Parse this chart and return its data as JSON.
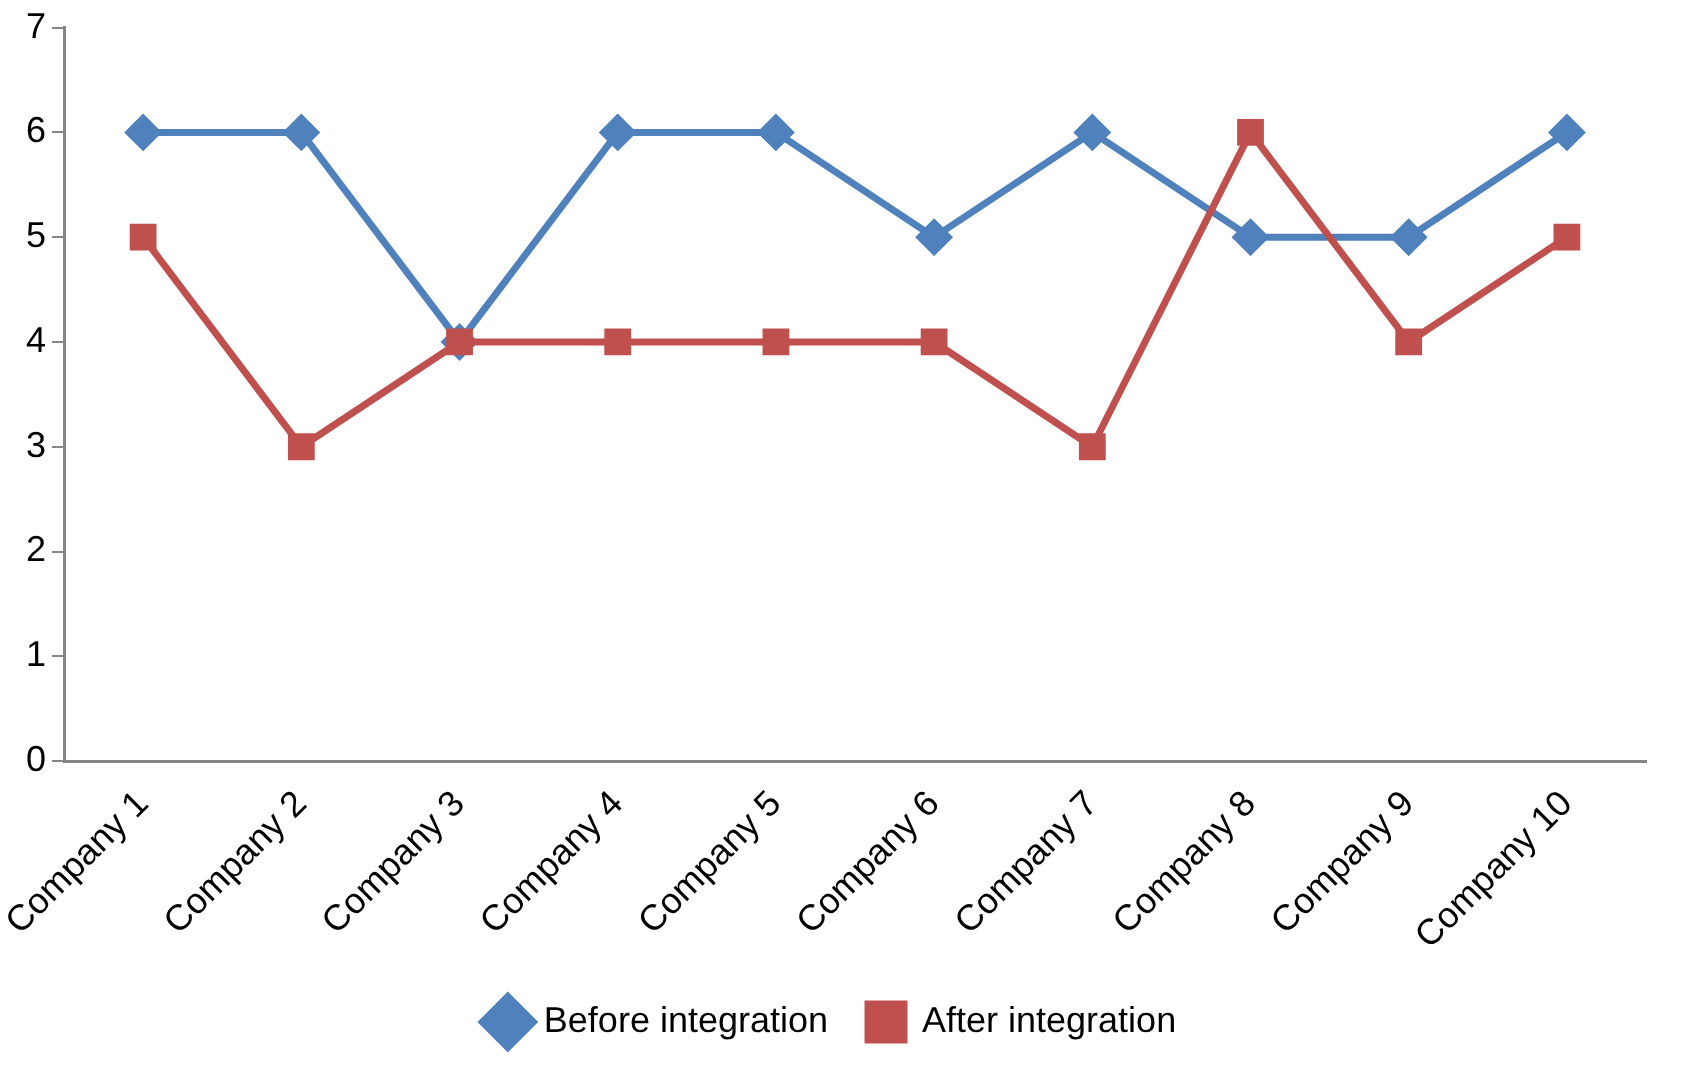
{
  "chart_data": {
    "type": "line",
    "categories": [
      "Company 1",
      "Company 2",
      "Company 3",
      "Company 4",
      "Company 5",
      "Company 6",
      "Company 7",
      "Company 8",
      "Company 9",
      "Company 10"
    ],
    "series": [
      {
        "name": "Before integration",
        "color": "#4f81bd",
        "marker": "diamond",
        "values": [
          6,
          6,
          4,
          6,
          6,
          5,
          6,
          5,
          5,
          6
        ]
      },
      {
        "name": "After integration",
        "color": "#c0504d",
        "marker": "square",
        "values": [
          5,
          3,
          4,
          4,
          4,
          4,
          3,
          6,
          4,
          5
        ]
      }
    ],
    "ylim": [
      0,
      7
    ],
    "yticks": [
      0,
      1,
      2,
      3,
      4,
      5,
      6,
      7
    ],
    "grid": false,
    "legend": "bottom",
    "line_style": "solid"
  }
}
